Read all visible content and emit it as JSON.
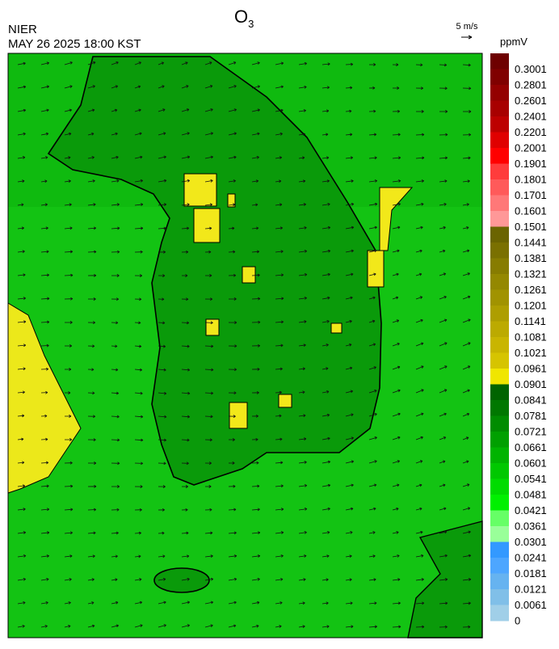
{
  "header": {
    "source": "NIER",
    "title": "O",
    "title_subscript": "3",
    "time": "MAY 26 2025 18:00 KST"
  },
  "wind_scale": "5 m/s",
  "colorbar": {
    "unit": "ppmV",
    "labels": [
      "0.3001",
      "0.2801",
      "0.2601",
      "0.2401",
      "0.2201",
      "0.2001",
      "0.1901",
      "0.1801",
      "0.1701",
      "0.1601",
      "0.1501",
      "0.1441",
      "0.1381",
      "0.1321",
      "0.1261",
      "0.1201",
      "0.1141",
      "0.1081",
      "0.1021",
      "0.0961",
      "0.0901",
      "0.0841",
      "0.0781",
      "0.0721",
      "0.0661",
      "0.0601",
      "0.0541",
      "0.0481",
      "0.0421",
      "0.0361",
      "0.0301",
      "0.0241",
      "0.0181",
      "0.0121",
      "0.0061",
      "0"
    ],
    "colors": [
      "#6e0000",
      "#800000",
      "#940000",
      "#a80000",
      "#bd0000",
      "#e00000",
      "#ff0000",
      "#ff3c3c",
      "#ff5a5a",
      "#ff7878",
      "#ff9898",
      "#6b6400",
      "#7a7000",
      "#877c00",
      "#948800",
      "#a19300",
      "#ae9e00",
      "#bcaa00",
      "#c9b500",
      "#d6c400",
      "#f0e600",
      "#006400",
      "#007800",
      "#008c00",
      "#00a000",
      "#00b400",
      "#00c800",
      "#00dc00",
      "#00f000",
      "#66ff66",
      "#99ff99",
      "#3399ff",
      "#4da6ff",
      "#66b3f0",
      "#80bfe8",
      "#a0cfe8"
    ]
  }
}
